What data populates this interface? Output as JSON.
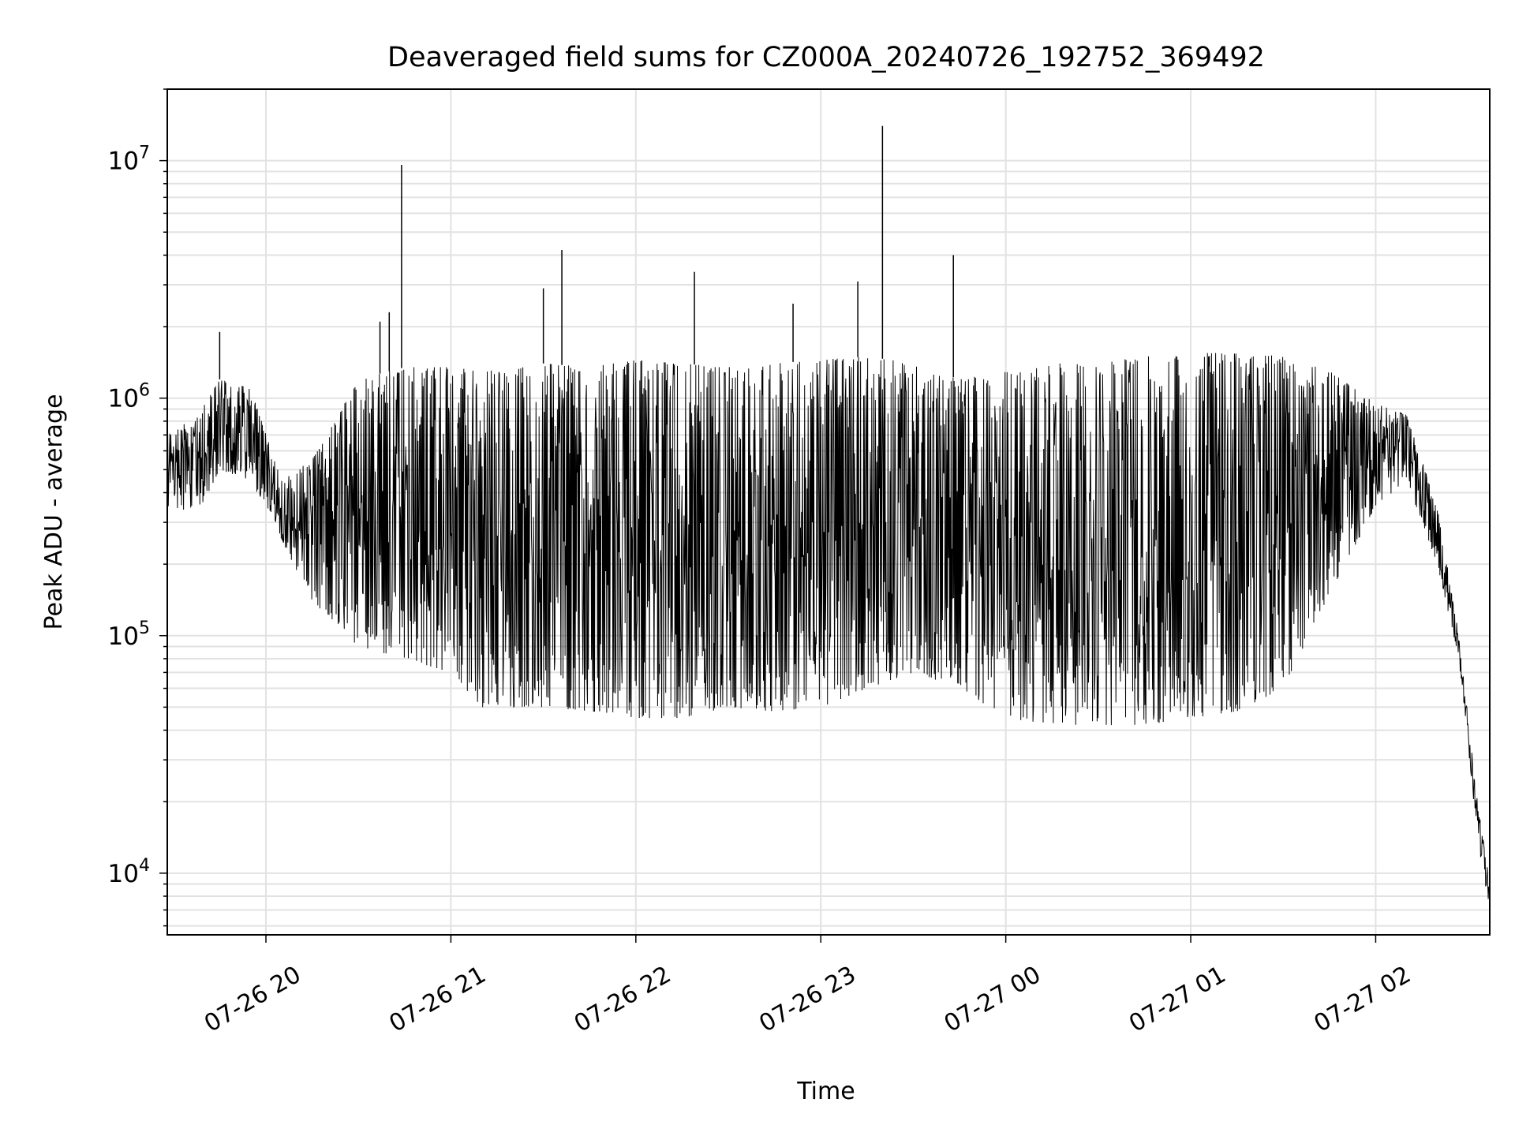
{
  "chart_data": {
    "type": "line",
    "title": "Deaveraged field sums for CZ000A_20240726_192752_369492",
    "xlabel": "Time",
    "ylabel": "Peak ADU - average",
    "yscale": "log",
    "grid": true,
    "legend": "none",
    "line_color": "#000000",
    "xlim": [
      "2024-07-26 19:28",
      "2024-07-27 02:37"
    ],
    "ylim": [
      5500,
      20000000
    ],
    "xticks": [
      {
        "value": "2024-07-26 20:00",
        "label": "07-26 20"
      },
      {
        "value": "2024-07-26 21:00",
        "label": "07-26 21"
      },
      {
        "value": "2024-07-26 22:00",
        "label": "07-26 22"
      },
      {
        "value": "2024-07-26 23:00",
        "label": "07-26 23"
      },
      {
        "value": "2024-07-27 00:00",
        "label": "07-27 00"
      },
      {
        "value": "2024-07-27 01:00",
        "label": "07-27 01"
      },
      {
        "value": "2024-07-27 02:00",
        "label": "07-27 02"
      }
    ],
    "yticks": [
      {
        "value": 10000,
        "base": "10",
        "exp": "4"
      },
      {
        "value": 100000,
        "base": "10",
        "exp": "5"
      },
      {
        "value": 1000000,
        "base": "10",
        "exp": "6"
      },
      {
        "value": 10000000,
        "base": "10",
        "exp": "7"
      }
    ],
    "series": [
      {
        "envelope": [
          {
            "t": "2024-07-26 19:28",
            "low": 350000,
            "high": 700000
          },
          {
            "t": "2024-07-26 19:38",
            "low": 330000,
            "high": 850000
          },
          {
            "t": "2024-07-26 19:45",
            "low": 500000,
            "high": 1200000
          },
          {
            "t": "2024-07-26 19:55",
            "low": 450000,
            "high": 1100000
          },
          {
            "t": "2024-07-26 20:05",
            "low": 250000,
            "high": 450000
          },
          {
            "t": "2024-07-26 20:15",
            "low": 140000,
            "high": 550000
          },
          {
            "t": "2024-07-26 20:30",
            "low": 90000,
            "high": 1200000
          },
          {
            "t": "2024-07-26 20:45",
            "low": 80000,
            "high": 1350000
          },
          {
            "t": "2024-07-26 21:00",
            "low": 70000,
            "high": 1350000
          },
          {
            "t": "2024-07-26 21:10",
            "low": 50000,
            "high": 1300000
          },
          {
            "t": "2024-07-26 21:30",
            "low": 50000,
            "high": 1400000
          },
          {
            "t": "2024-07-26 21:45",
            "low": 48000,
            "high": 1350000
          },
          {
            "t": "2024-07-26 22:00",
            "low": 45000,
            "high": 1450000
          },
          {
            "t": "2024-07-26 22:15",
            "low": 45000,
            "high": 1400000
          },
          {
            "t": "2024-07-26 22:30",
            "low": 50000,
            "high": 1350000
          },
          {
            "t": "2024-07-26 22:45",
            "low": 48000,
            "high": 1400000
          },
          {
            "t": "2024-07-26 23:00",
            "low": 50000,
            "high": 1450000
          },
          {
            "t": "2024-07-26 23:15",
            "low": 60000,
            "high": 1500000
          },
          {
            "t": "2024-07-26 23:30",
            "low": 70000,
            "high": 1400000
          },
          {
            "t": "2024-07-26 23:45",
            "low": 60000,
            "high": 1200000
          },
          {
            "t": "2024-07-27 00:00",
            "low": 45000,
            "high": 1300000
          },
          {
            "t": "2024-07-27 00:15",
            "low": 42000,
            "high": 1400000
          },
          {
            "t": "2024-07-27 00:30",
            "low": 42000,
            "high": 1400000
          },
          {
            "t": "2024-07-27 00:45",
            "low": 42000,
            "high": 1500000
          },
          {
            "t": "2024-07-27 01:00",
            "low": 45000,
            "high": 1550000
          },
          {
            "t": "2024-07-27 01:15",
            "low": 48000,
            "high": 1550000
          },
          {
            "t": "2024-07-27 01:30",
            "low": 60000,
            "high": 1500000
          },
          {
            "t": "2024-07-27 01:45",
            "low": 150000,
            "high": 1300000
          },
          {
            "t": "2024-07-27 02:00",
            "low": 350000,
            "high": 950000
          },
          {
            "t": "2024-07-27 02:10",
            "low": 450000,
            "high": 850000
          },
          {
            "t": "2024-07-27 02:20",
            "low": 200000,
            "high": 350000
          },
          {
            "t": "2024-07-27 02:27",
            "low": 80000,
            "high": 100000
          },
          {
            "t": "2024-07-27 02:33",
            "low": 14000,
            "high": 20000
          },
          {
            "t": "2024-07-27 02:37",
            "low": 7000,
            "high": 9000
          }
        ],
        "spikes": [
          {
            "t": "2024-07-26 19:45",
            "value": 1900000
          },
          {
            "t": "2024-07-26 20:37",
            "value": 2100000
          },
          {
            "t": "2024-07-26 20:40",
            "value": 2300000
          },
          {
            "t": "2024-07-26 20:44",
            "value": 9600000
          },
          {
            "t": "2024-07-26 21:30",
            "value": 2900000
          },
          {
            "t": "2024-07-26 21:36",
            "value": 4200000
          },
          {
            "t": "2024-07-26 22:19",
            "value": 3400000
          },
          {
            "t": "2024-07-26 22:51",
            "value": 2500000
          },
          {
            "t": "2024-07-26 23:12",
            "value": 3100000
          },
          {
            "t": "2024-07-26 23:20",
            "value": 14000000
          },
          {
            "t": "2024-07-26 23:43",
            "value": 4000000
          }
        ]
      }
    ]
  }
}
